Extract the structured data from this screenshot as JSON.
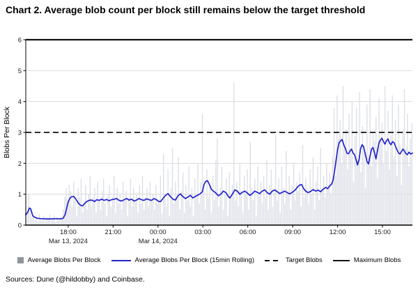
{
  "title": "Chart 2. Average blob count per block still remains below the target threshold",
  "sources": "Sources: Dune (@hildobby) and Coinbase.",
  "colors": {
    "bar": "#dcdfe7",
    "line": "#2222cc",
    "target": "#111111",
    "maximum": "#111111",
    "grid": "#d9d9d9",
    "axis": "#000000",
    "tick_text": "#1a1a1a"
  },
  "legend": {
    "items": [
      {
        "label": "Average Blobs Per Block",
        "marker": "square"
      },
      {
        "label": "Average Blobs Per Block (15min Rolling)",
        "marker": "line"
      },
      {
        "label": "Target Blobs",
        "marker": "dashed"
      },
      {
        "label": "Maximum Blobs",
        "marker": "solid"
      }
    ]
  },
  "chart_data": {
    "type": "bar",
    "title": "Chart 2. Average blob count per block still remains below the target threshold",
    "xlabel": "",
    "ylabel": "Blobs Per Block",
    "ylim": [
      0,
      6
    ],
    "y_ticks": [
      0,
      1,
      2,
      3,
      4,
      5,
      6
    ],
    "grid": "horizontal",
    "legend_position": "bottom",
    "x_unit": "minutes since Mar 13, 2024 15:10",
    "x_range": [
      0,
      1550
    ],
    "x_ticks": [
      {
        "t": 170,
        "label": "18:00",
        "date": "Mar 13, 2024"
      },
      {
        "t": 350,
        "label": "21:00",
        "date": ""
      },
      {
        "t": 530,
        "label": "00:00",
        "date": "Mar 14, 2024"
      },
      {
        "t": 710,
        "label": "03:00",
        "date": ""
      },
      {
        "t": 890,
        "label": "06:00",
        "date": ""
      },
      {
        "t": 1070,
        "label": "09:00",
        "date": ""
      },
      {
        "t": 1250,
        "label": "12:00",
        "date": ""
      },
      {
        "t": 1430,
        "label": "15:00",
        "date": ""
      }
    ],
    "reference_lines": [
      {
        "name": "Target Blobs",
        "value": 3,
        "style": "dashed"
      },
      {
        "name": "Maximum Blobs",
        "value": 6,
        "style": "solid"
      }
    ],
    "series": [
      {
        "name": "Average Blobs Per Block",
        "type": "bar",
        "interval_min": 6,
        "start_t": 0,
        "values": [
          0.9,
          0.45,
          1.0,
          0.6,
          0.25,
          0.3,
          0.15,
          0.25,
          0.1,
          0.35,
          0.2,
          0.15,
          0.3,
          0.1,
          0.25,
          0.2,
          0.35,
          0.15,
          0.2,
          0.3,
          0.1,
          0.25,
          0.15,
          0.2,
          0.25,
          0.5,
          0.9,
          1.2,
          0.8,
          1.3,
          1.1,
          0.6,
          1.4,
          0.8,
          0.3,
          1.2,
          0.9,
          1.5,
          0.4,
          0.7,
          1.3,
          0.5,
          1.0,
          1.6,
          0.6,
          0.9,
          1.2,
          0.4,
          1.4,
          0.8,
          0.5,
          1.1,
          1.5,
          0.7,
          0.3,
          1.0,
          1.3,
          0.6,
          0.9,
          1.6,
          0.4,
          1.2,
          0.7,
          1.0,
          0.5,
          1.4,
          0.8,
          1.1,
          0.3,
          0.9,
          1.5,
          0.6,
          1.2,
          0.8,
          1.0,
          0.4,
          1.3,
          0.7,
          1.6,
          0.5,
          0.9,
          1.2,
          0.6,
          1.4,
          0.8,
          1.0,
          0.5,
          1.3,
          0.7,
          0.8,
          1.6,
          0.4,
          2.3,
          1.0,
          0.6,
          1.8,
          0.3,
          1.2,
          2.5,
          0.7,
          1.4,
          0.9,
          2.2,
          0.5,
          1.1,
          1.7,
          0.4,
          1.3,
          0.8,
          1.9,
          0.6,
          1.2,
          0.3,
          1.5,
          1.0,
          2.0,
          0.7,
          1.4,
          3.6,
          1.1,
          0.5,
          1.8,
          0.9,
          1.3,
          0.4,
          1.6,
          0.8,
          2.1,
          2.8,
          0.6,
          1.2,
          1.9,
          0.5,
          1.0,
          1.5,
          0.3,
          1.7,
          0.9,
          1.3,
          4.6,
          0.8,
          1.4,
          0.6,
          2.0,
          1.1,
          0.4,
          1.6,
          1.0,
          1.8,
          0.5,
          2.7,
          1.2,
          0.8,
          1.5,
          0.3,
          1.9,
          1.0,
          1.4,
          0.7,
          1.6,
          0.9,
          2.1,
          0.5,
          1.3,
          1.8,
          0.6,
          1.1,
          2.9,
          0.8,
          1.5,
          0.4,
          1.9,
          1.2,
          0.7,
          2.4,
          1.0,
          1.6,
          0.5,
          1.3,
          2.0,
          0.8,
          1.4,
          1.1,
          1.7,
          0.6,
          2.6,
          0.9,
          1.5,
          1.2,
          0.7,
          1.8,
          1.0,
          2.2,
          0.5,
          1.4,
          1.9,
          0.8,
          2.5,
          1.1,
          1.6,
          0.9,
          2.0,
          1.3,
          1.7,
          1.0,
          2.2,
          3.8,
          1.6,
          4.2,
          2.8,
          3.4,
          2.0,
          4.5,
          2.5,
          3.1,
          1.8,
          3.6,
          2.4,
          4.0,
          1.4,
          2.9,
          3.8,
          2.1,
          4.3,
          1.7,
          3.2,
          2.6,
          1.2,
          3.9,
          2.3,
          4.4,
          1.9,
          3.0,
          2.7,
          3.5,
          1.5,
          4.1,
          2.8,
          3.3,
          2.0,
          4.5,
          2.4,
          3.7,
          1.8,
          2.9,
          4.2,
          2.2,
          3.4,
          1.6,
          3.9,
          2.6,
          1.3,
          3.1,
          4.4,
          2.5,
          3.6,
          1.9,
          2.8,
          3.3
        ]
      },
      {
        "name": "Average Blobs Per Block (15min Rolling)",
        "type": "line",
        "points": [
          [
            0,
            0.33
          ],
          [
            8,
            0.42
          ],
          [
            14,
            0.55
          ],
          [
            20,
            0.52
          ],
          [
            28,
            0.3
          ],
          [
            35,
            0.26
          ],
          [
            45,
            0.22
          ],
          [
            60,
            0.21
          ],
          [
            80,
            0.2
          ],
          [
            100,
            0.2
          ],
          [
            120,
            0.21
          ],
          [
            140,
            0.2
          ],
          [
            150,
            0.22
          ],
          [
            158,
            0.35
          ],
          [
            164,
            0.55
          ],
          [
            170,
            0.75
          ],
          [
            176,
            0.86
          ],
          [
            184,
            0.92
          ],
          [
            192,
            0.93
          ],
          [
            200,
            0.85
          ],
          [
            210,
            0.72
          ],
          [
            220,
            0.64
          ],
          [
            228,
            0.62
          ],
          [
            238,
            0.72
          ],
          [
            248,
            0.78
          ],
          [
            258,
            0.81
          ],
          [
            268,
            0.8
          ],
          [
            276,
            0.76
          ],
          [
            284,
            0.82
          ],
          [
            294,
            0.8
          ],
          [
            304,
            0.84
          ],
          [
            314,
            0.8
          ],
          [
            324,
            0.83
          ],
          [
            334,
            0.79
          ],
          [
            344,
            0.82
          ],
          [
            354,
            0.84
          ],
          [
            364,
            0.86
          ],
          [
            374,
            0.8
          ],
          [
            384,
            0.78
          ],
          [
            394,
            0.82
          ],
          [
            404,
            0.86
          ],
          [
            414,
            0.81
          ],
          [
            424,
            0.84
          ],
          [
            434,
            0.78
          ],
          [
            444,
            0.81
          ],
          [
            454,
            0.86
          ],
          [
            464,
            0.82
          ],
          [
            474,
            0.8
          ],
          [
            484,
            0.85
          ],
          [
            494,
            0.82
          ],
          [
            504,
            0.8
          ],
          [
            514,
            0.86
          ],
          [
            524,
            0.82
          ],
          [
            532,
            0.77
          ],
          [
            540,
            0.76
          ],
          [
            550,
            0.86
          ],
          [
            560,
            0.96
          ],
          [
            570,
            1.02
          ],
          [
            580,
            0.92
          ],
          [
            590,
            0.84
          ],
          [
            600,
            0.81
          ],
          [
            610,
            0.95
          ],
          [
            620,
            1.01
          ],
          [
            630,
            0.92
          ],
          [
            640,
            0.86
          ],
          [
            650,
            0.91
          ],
          [
            660,
            0.96
          ],
          [
            670,
            0.88
          ],
          [
            680,
            0.93
          ],
          [
            690,
            0.97
          ],
          [
            700,
            1.02
          ],
          [
            708,
            1.08
          ],
          [
            714,
            1.3
          ],
          [
            720,
            1.4
          ],
          [
            728,
            1.44
          ],
          [
            736,
            1.32
          ],
          [
            744,
            1.16
          ],
          [
            752,
            1.1
          ],
          [
            762,
            1.04
          ],
          [
            772,
            0.95
          ],
          [
            782,
            1.0
          ],
          [
            792,
            1.1
          ],
          [
            802,
            1.05
          ],
          [
            812,
            0.93
          ],
          [
            818,
            0.88
          ],
          [
            828,
            1.0
          ],
          [
            838,
            1.14
          ],
          [
            848,
            1.1
          ],
          [
            858,
            1.0
          ],
          [
            868,
            1.06
          ],
          [
            878,
            1.1
          ],
          [
            888,
            1.04
          ],
          [
            898,
            0.96
          ],
          [
            908,
            1.02
          ],
          [
            918,
            1.1
          ],
          [
            928,
            1.06
          ],
          [
            938,
            1.02
          ],
          [
            948,
            1.1
          ],
          [
            958,
            1.14
          ],
          [
            968,
            1.05
          ],
          [
            978,
            1.0
          ],
          [
            988,
            1.1
          ],
          [
            998,
            1.14
          ],
          [
            1008,
            1.08
          ],
          [
            1018,
            1.02
          ],
          [
            1028,
            1.06
          ],
          [
            1038,
            1.1
          ],
          [
            1048,
            1.05
          ],
          [
            1058,
            1.01
          ],
          [
            1068,
            1.06
          ],
          [
            1078,
            1.12
          ],
          [
            1088,
            1.22
          ],
          [
            1098,
            1.3
          ],
          [
            1106,
            1.31
          ],
          [
            1114,
            1.18
          ],
          [
            1122,
            1.1
          ],
          [
            1132,
            1.05
          ],
          [
            1142,
            1.09
          ],
          [
            1152,
            1.15
          ],
          [
            1162,
            1.1
          ],
          [
            1172,
            1.13
          ],
          [
            1182,
            1.08
          ],
          [
            1192,
            1.16
          ],
          [
            1202,
            1.22
          ],
          [
            1210,
            1.18
          ],
          [
            1218,
            1.26
          ],
          [
            1226,
            1.33
          ],
          [
            1232,
            1.45
          ],
          [
            1238,
            1.75
          ],
          [
            1244,
            2.1
          ],
          [
            1250,
            2.45
          ],
          [
            1256,
            2.66
          ],
          [
            1262,
            2.73
          ],
          [
            1268,
            2.77
          ],
          [
            1274,
            2.62
          ],
          [
            1282,
            2.46
          ],
          [
            1288,
            2.32
          ],
          [
            1294,
            2.31
          ],
          [
            1300,
            2.4
          ],
          [
            1306,
            2.46
          ],
          [
            1312,
            2.33
          ],
          [
            1318,
            2.28
          ],
          [
            1324,
            2.12
          ],
          [
            1330,
            1.95
          ],
          [
            1336,
            2.12
          ],
          [
            1342,
            2.46
          ],
          [
            1348,
            2.6
          ],
          [
            1354,
            2.54
          ],
          [
            1360,
            2.34
          ],
          [
            1368,
            2.05
          ],
          [
            1374,
            1.98
          ],
          [
            1380,
            2.22
          ],
          [
            1386,
            2.46
          ],
          [
            1392,
            2.51
          ],
          [
            1398,
            2.34
          ],
          [
            1404,
            2.14
          ],
          [
            1410,
            2.42
          ],
          [
            1416,
            2.66
          ],
          [
            1422,
            2.76
          ],
          [
            1428,
            2.81
          ],
          [
            1434,
            2.7
          ],
          [
            1440,
            2.62
          ],
          [
            1446,
            2.73
          ],
          [
            1452,
            2.79
          ],
          [
            1458,
            2.66
          ],
          [
            1464,
            2.6
          ],
          [
            1470,
            2.7
          ],
          [
            1476,
            2.67
          ],
          [
            1482,
            2.55
          ],
          [
            1488,
            2.44
          ],
          [
            1494,
            2.34
          ],
          [
            1500,
            2.3
          ],
          [
            1506,
            2.38
          ],
          [
            1512,
            2.46
          ],
          [
            1518,
            2.4
          ],
          [
            1524,
            2.31
          ],
          [
            1530,
            2.28
          ],
          [
            1536,
            2.36
          ],
          [
            1543,
            2.3
          ],
          [
            1550,
            2.33
          ]
        ]
      }
    ]
  }
}
